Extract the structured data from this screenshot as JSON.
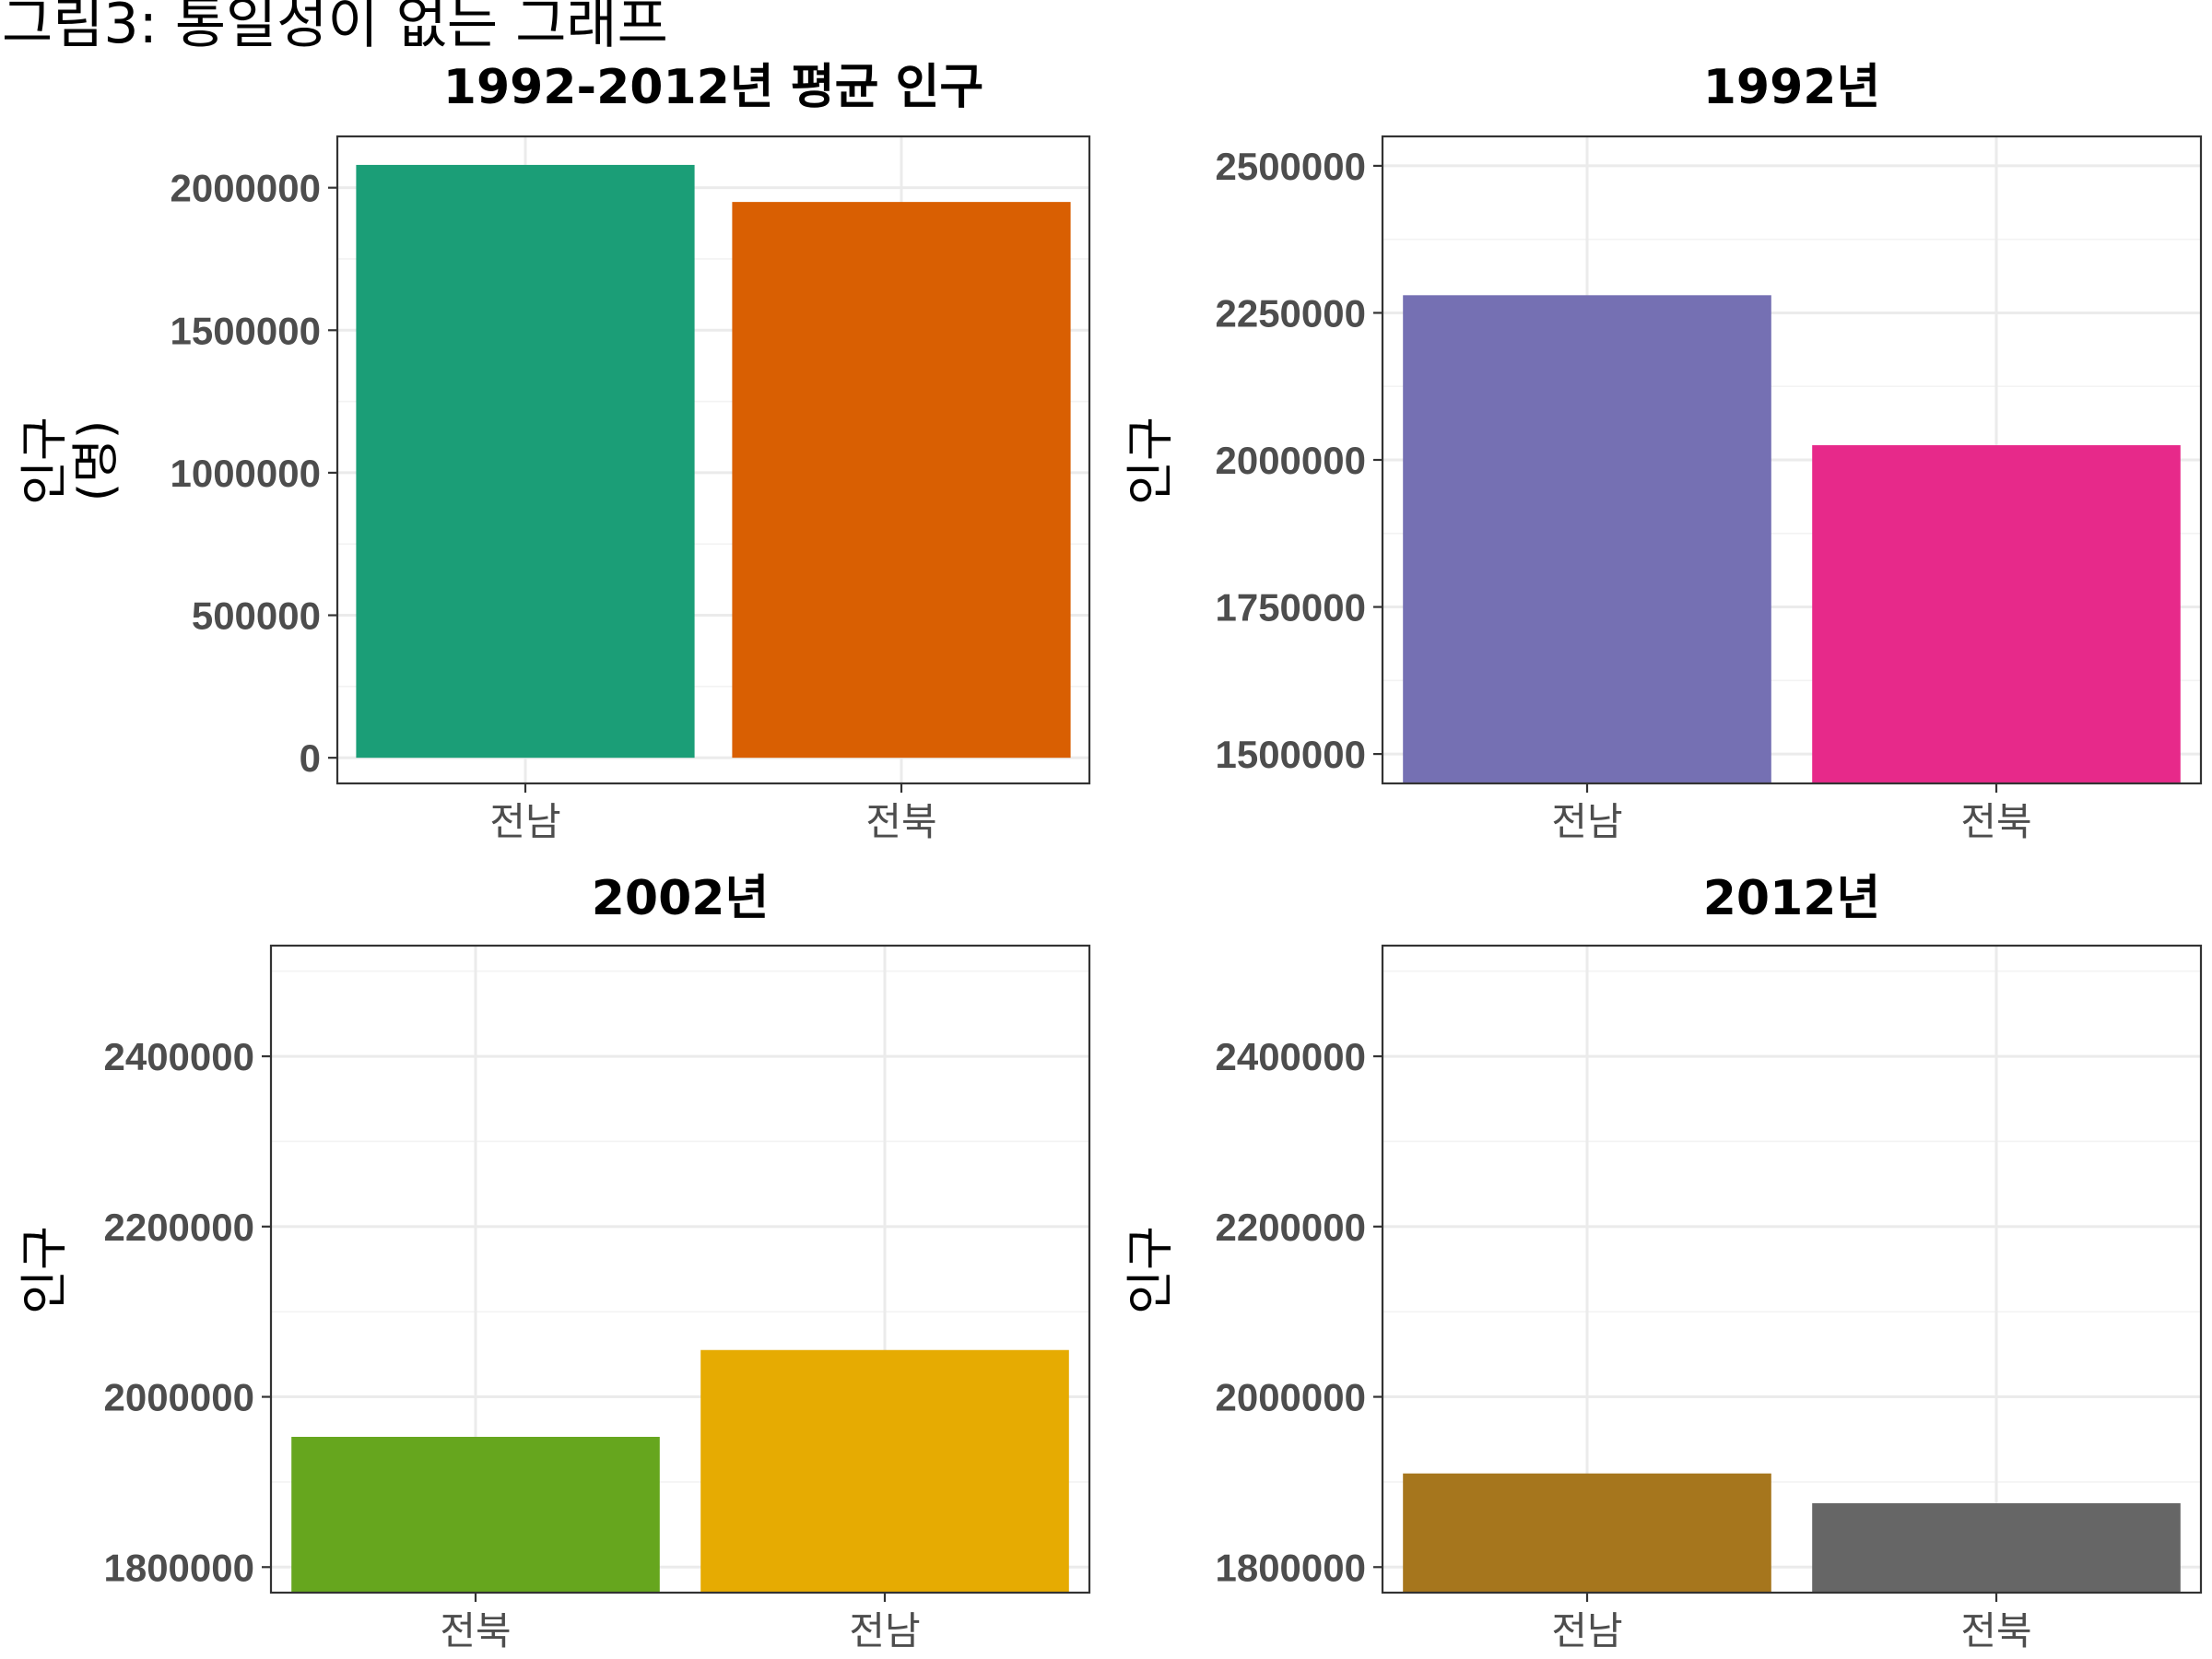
{
  "figure_title": "그림3: 통일성이 없는 그래프",
  "chart_data": [
    {
      "type": "bar",
      "title": "1992-2012년 평균 인구",
      "ylabel": "인구\n(명)",
      "categories": [
        "전남",
        "전북"
      ],
      "values": [
        2080000,
        1950000
      ],
      "colors": [
        "#1b9e77",
        "#d95f02"
      ],
      "ylim": [
        -90000,
        2180000
      ],
      "bar_base": 0,
      "yticks": [
        0,
        500000,
        1000000,
        1500000,
        2000000
      ],
      "ytick_labels": [
        "0",
        "500000",
        "1000000",
        "1500000",
        "2000000"
      ],
      "grid": true
    },
    {
      "type": "bar",
      "title": "1992년",
      "ylabel": "인구",
      "categories": [
        "전남",
        "전북"
      ],
      "values": [
        2280000,
        2025000
      ],
      "colors": [
        "#7570b3",
        "#e7298a"
      ],
      "ylim": [
        1450000,
        2550000
      ],
      "yticks": [
        1500000,
        1750000,
        2000000,
        2250000,
        2500000
      ],
      "ytick_labels": [
        "1500000",
        "1750000",
        "2000000",
        "2250000",
        "2500000"
      ],
      "grid": true
    },
    {
      "type": "bar",
      "title": "2002년",
      "ylabel": "인구",
      "categories": [
        "전북",
        "전남"
      ],
      "values": [
        1953000,
        2055000
      ],
      "colors": [
        "#66a61e",
        "#e6ab02"
      ],
      "ylim": [
        1770000,
        2530000
      ],
      "yticks": [
        1800000,
        2000000,
        2200000,
        2400000
      ],
      "ytick_labels": [
        "1800000",
        "2000000",
        "2200000",
        "2400000"
      ],
      "grid": true
    },
    {
      "type": "bar",
      "title": "2012년",
      "ylabel": "인구",
      "categories": [
        "전남",
        "전북"
      ],
      "values": [
        1910000,
        1875000
      ],
      "colors": [
        "#a6761d",
        "#666666"
      ],
      "ylim": [
        1770000,
        2530000
      ],
      "yticks": [
        1800000,
        2000000,
        2200000,
        2400000
      ],
      "ytick_labels": [
        "1800000",
        "2000000",
        "2200000",
        "2400000"
      ],
      "grid": true
    }
  ]
}
